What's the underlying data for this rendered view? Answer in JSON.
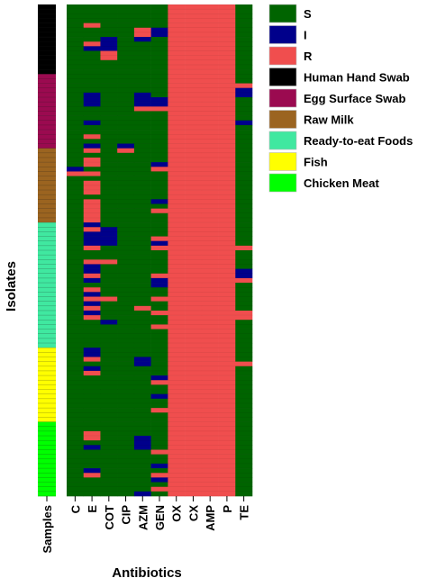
{
  "chart_data": {
    "type": "heatmap",
    "xlabel": "Antibiotics",
    "ylabel": "Isolates",
    "sample_column_label": "Samples",
    "antibiotics": [
      "C",
      "E",
      "COT",
      "CIP",
      "AZM",
      "GEN",
      "OX",
      "CX",
      "AMP",
      "P",
      "TE"
    ],
    "legend": [
      {
        "label": "S",
        "color": "#006400"
      },
      {
        "label": "I",
        "color": "#00008B"
      },
      {
        "label": "R",
        "color": "#F04E4E"
      },
      {
        "label": "Human Hand Swab",
        "color": "#000000"
      },
      {
        "label": "Egg Surface Swab",
        "color": "#9B0A50"
      },
      {
        "label": "Raw Milk",
        "color": "#9B6420"
      },
      {
        "label": "Ready-to-eat Foods",
        "color": "#40E8A0"
      },
      {
        "label": "Fish",
        "color": "#FFFF00"
      },
      {
        "label": "Chicken Meat",
        "color": "#00FF00"
      }
    ],
    "groups": [
      {
        "name": "Human Hand Swab",
        "count": 15
      },
      {
        "name": "Egg Surface Swab",
        "count": 16
      },
      {
        "name": "Raw Milk",
        "count": 16
      },
      {
        "name": "Ready-to-eat Foods",
        "count": 27
      },
      {
        "name": "Fish",
        "count": 16
      },
      {
        "name": "Chicken Meat",
        "count": 16
      }
    ],
    "default_status": "S",
    "full_resistance_columns": [
      "OX",
      "CX",
      "AMP",
      "P"
    ],
    "cells": [
      {
        "row": 4,
        "col": "E",
        "status": "R"
      },
      {
        "row": 5,
        "col": "AZM",
        "status": "R"
      },
      {
        "row": 5,
        "col": "GEN",
        "status": "I"
      },
      {
        "row": 6,
        "col": "AZM",
        "status": "R"
      },
      {
        "row": 6,
        "col": "GEN",
        "status": "I"
      },
      {
        "row": 7,
        "col": "COT",
        "status": "I"
      },
      {
        "row": 7,
        "col": "AZM",
        "status": "I"
      },
      {
        "row": 8,
        "col": "E",
        "status": "R"
      },
      {
        "row": 8,
        "col": "COT",
        "status": "I"
      },
      {
        "row": 9,
        "col": "E",
        "status": "I"
      },
      {
        "row": 9,
        "col": "COT",
        "status": "I"
      },
      {
        "row": 10,
        "col": "COT",
        "status": "R"
      },
      {
        "row": 11,
        "col": "COT",
        "status": "R"
      },
      {
        "row": 17,
        "col": "TE",
        "status": "R"
      },
      {
        "row": 18,
        "col": "TE",
        "status": "I"
      },
      {
        "row": 19,
        "col": "E",
        "status": "I"
      },
      {
        "row": 19,
        "col": "AZM",
        "status": "I"
      },
      {
        "row": 19,
        "col": "TE",
        "status": "I"
      },
      {
        "row": 20,
        "col": "E",
        "status": "I"
      },
      {
        "row": 20,
        "col": "AZM",
        "status": "I"
      },
      {
        "row": 20,
        "col": "GEN",
        "status": "I"
      },
      {
        "row": 21,
        "col": "E",
        "status": "I"
      },
      {
        "row": 21,
        "col": "AZM",
        "status": "I"
      },
      {
        "row": 21,
        "col": "GEN",
        "status": "I"
      },
      {
        "row": 22,
        "col": "AZM",
        "status": "R"
      },
      {
        "row": 22,
        "col": "GEN",
        "status": "R"
      },
      {
        "row": 25,
        "col": "E",
        "status": "I"
      },
      {
        "row": 25,
        "col": "TE",
        "status": "I"
      },
      {
        "row": 28,
        "col": "E",
        "status": "R"
      },
      {
        "row": 30,
        "col": "E",
        "status": "I"
      },
      {
        "row": 30,
        "col": "CIP",
        "status": "I"
      },
      {
        "row": 31,
        "col": "E",
        "status": "R"
      },
      {
        "row": 31,
        "col": "CIP",
        "status": "R"
      },
      {
        "row": 33,
        "col": "E",
        "status": "R"
      },
      {
        "row": 34,
        "col": "E",
        "status": "R"
      },
      {
        "row": 34,
        "col": "GEN",
        "status": "I"
      },
      {
        "row": 35,
        "col": "C",
        "status": "I"
      },
      {
        "row": 35,
        "col": "GEN",
        "status": "R"
      },
      {
        "row": 36,
        "col": "C",
        "status": "R"
      },
      {
        "row": 36,
        "col": "E",
        "status": "R"
      },
      {
        "row": 38,
        "col": "E",
        "status": "R"
      },
      {
        "row": 39,
        "col": "E",
        "status": "R"
      },
      {
        "row": 40,
        "col": "E",
        "status": "R"
      },
      {
        "row": 42,
        "col": "E",
        "status": "R"
      },
      {
        "row": 42,
        "col": "GEN",
        "status": "I"
      },
      {
        "row": 43,
        "col": "E",
        "status": "R"
      },
      {
        "row": 44,
        "col": "E",
        "status": "R"
      },
      {
        "row": 44,
        "col": "GEN",
        "status": "R"
      },
      {
        "row": 45,
        "col": "E",
        "status": "R"
      },
      {
        "row": 46,
        "col": "E",
        "status": "R"
      },
      {
        "row": 47,
        "col": "E",
        "status": "I"
      },
      {
        "row": 48,
        "col": "E",
        "status": "R"
      },
      {
        "row": 48,
        "col": "COT",
        "status": "I"
      },
      {
        "row": 49,
        "col": "E",
        "status": "I"
      },
      {
        "row": 49,
        "col": "COT",
        "status": "I"
      },
      {
        "row": 50,
        "col": "E",
        "status": "I"
      },
      {
        "row": 50,
        "col": "COT",
        "status": "I"
      },
      {
        "row": 50,
        "col": "GEN",
        "status": "R"
      },
      {
        "row": 51,
        "col": "E",
        "status": "I"
      },
      {
        "row": 51,
        "col": "COT",
        "status": "I"
      },
      {
        "row": 51,
        "col": "GEN",
        "status": "I"
      },
      {
        "row": 52,
        "col": "E",
        "status": "R"
      },
      {
        "row": 52,
        "col": "GEN",
        "status": "R"
      },
      {
        "row": 52,
        "col": "TE",
        "status": "R"
      },
      {
        "row": 55,
        "col": "E",
        "status": "R"
      },
      {
        "row": 55,
        "col": "COT",
        "status": "R"
      },
      {
        "row": 56,
        "col": "E",
        "status": "I"
      },
      {
        "row": 57,
        "col": "E",
        "status": "I"
      },
      {
        "row": 57,
        "col": "TE",
        "status": "I"
      },
      {
        "row": 58,
        "col": "E",
        "status": "R"
      },
      {
        "row": 58,
        "col": "GEN",
        "status": "R"
      },
      {
        "row": 58,
        "col": "TE",
        "status": "I"
      },
      {
        "row": 59,
        "col": "E",
        "status": "I"
      },
      {
        "row": 59,
        "col": "GEN",
        "status": "I"
      },
      {
        "row": 59,
        "col": "TE",
        "status": "R"
      },
      {
        "row": 60,
        "col": "GEN",
        "status": "I"
      },
      {
        "row": 61,
        "col": "E",
        "status": "R"
      },
      {
        "row": 62,
        "col": "E",
        "status": "I"
      },
      {
        "row": 63,
        "col": "E",
        "status": "R"
      },
      {
        "row": 63,
        "col": "COT",
        "status": "R"
      },
      {
        "row": 63,
        "col": "GEN",
        "status": "R"
      },
      {
        "row": 64,
        "col": "E",
        "status": "I"
      },
      {
        "row": 65,
        "col": "E",
        "status": "R"
      },
      {
        "row": 65,
        "col": "AZM",
        "status": "R"
      },
      {
        "row": 66,
        "col": "E",
        "status": "I"
      },
      {
        "row": 66,
        "col": "GEN",
        "status": "R"
      },
      {
        "row": 66,
        "col": "TE",
        "status": "R"
      },
      {
        "row": 67,
        "col": "E",
        "status": "R"
      },
      {
        "row": 67,
        "col": "TE",
        "status": "R"
      },
      {
        "row": 68,
        "col": "COT",
        "status": "I"
      },
      {
        "row": 69,
        "col": "GEN",
        "status": "R"
      },
      {
        "row": 74,
        "col": "E",
        "status": "I"
      },
      {
        "row": 75,
        "col": "E",
        "status": "I"
      },
      {
        "row": 76,
        "col": "E",
        "status": "R"
      },
      {
        "row": 76,
        "col": "AZM",
        "status": "I"
      },
      {
        "row": 77,
        "col": "AZM",
        "status": "I"
      },
      {
        "row": 77,
        "col": "TE",
        "status": "R"
      },
      {
        "row": 78,
        "col": "E",
        "status": "I"
      },
      {
        "row": 79,
        "col": "E",
        "status": "R"
      },
      {
        "row": 80,
        "col": "GEN",
        "status": "I"
      },
      {
        "row": 81,
        "col": "GEN",
        "status": "R"
      },
      {
        "row": 84,
        "col": "GEN",
        "status": "I"
      },
      {
        "row": 87,
        "col": "GEN",
        "status": "R"
      },
      {
        "row": 92,
        "col": "E",
        "status": "R"
      },
      {
        "row": 93,
        "col": "E",
        "status": "R"
      },
      {
        "row": 93,
        "col": "AZM",
        "status": "I"
      },
      {
        "row": 94,
        "col": "AZM",
        "status": "I"
      },
      {
        "row": 95,
        "col": "E",
        "status": "I"
      },
      {
        "row": 95,
        "col": "AZM",
        "status": "I"
      },
      {
        "row": 96,
        "col": "GEN",
        "status": "R"
      },
      {
        "row": 99,
        "col": "GEN",
        "status": "I"
      },
      {
        "row": 100,
        "col": "E",
        "status": "I"
      },
      {
        "row": 101,
        "col": "E",
        "status": "R"
      },
      {
        "row": 101,
        "col": "GEN",
        "status": "R"
      },
      {
        "row": 102,
        "col": "GEN",
        "status": "I"
      },
      {
        "row": 104,
        "col": "GEN",
        "status": "R"
      },
      {
        "row": 105,
        "col": "AZM",
        "status": "I"
      }
    ]
  }
}
